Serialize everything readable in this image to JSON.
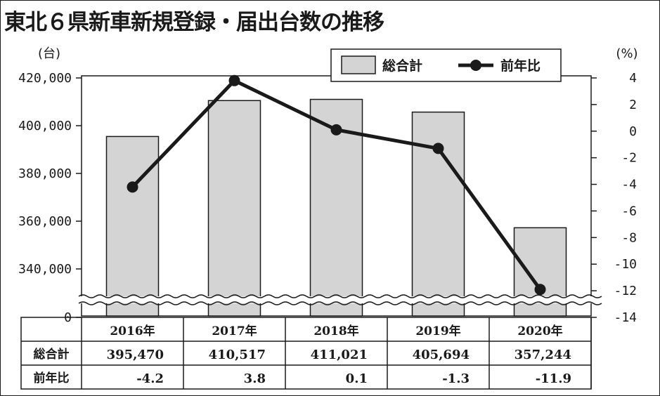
{
  "chart_data": {
    "type": "bar",
    "title": "東北６県新車新規登録・届出台数の推移",
    "categories": [
      "2016年",
      "2017年",
      "2018年",
      "2019年",
      "2020年"
    ],
    "y_left_unit": "(台)",
    "y_right_unit": "(%)",
    "y_left_ticks": [
      "420,000",
      "400,000",
      "380,000",
      "360,000",
      "340,000",
      "0"
    ],
    "y_right_ticks": [
      "4",
      "2",
      "0",
      "-2",
      "-4",
      "-6",
      "-8",
      "-10",
      "-12",
      "-14"
    ],
    "ylim_left": [
      330000,
      420000
    ],
    "ylim_right": [
      -14,
      4
    ],
    "axis_break": true,
    "legend_position": "top-right",
    "series": [
      {
        "name": "総合計",
        "type": "bar",
        "axis": "left",
        "color": "#d4d4d4",
        "values": [
          395470,
          410517,
          411021,
          405694,
          357244
        ]
      },
      {
        "name": "前年比",
        "type": "line",
        "axis": "right",
        "color": "#1a1a1a",
        "values": [
          -4.2,
          3.8,
          0.1,
          -1.3,
          -11.9
        ]
      }
    ],
    "table": {
      "row_labels": [
        "総合計",
        "前年比"
      ],
      "rows": [
        [
          "395,470",
          "410,517",
          "411,021",
          "405,694",
          "357,244"
        ],
        [
          "-4.2",
          "3.8",
          "0.1",
          "-1.3",
          "-11.9"
        ]
      ]
    }
  }
}
